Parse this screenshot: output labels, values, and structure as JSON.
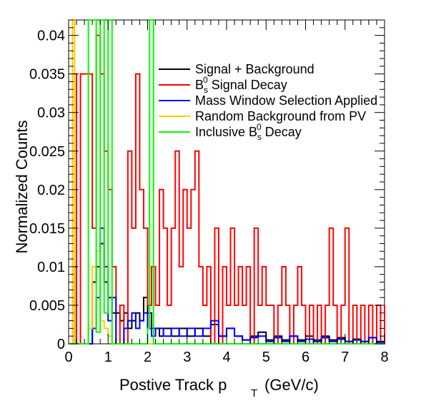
{
  "chart_data": {
    "type": "line",
    "style": "step-histogram",
    "xlabel_main": "Postive Track p",
    "xlabel_sub": "T",
    "xlabel_unit": "(GeV/c)",
    "ylabel": "Normalized Counts",
    "xlim": [
      0,
      8
    ],
    "ylim": [
      0,
      0.042
    ],
    "x_ticks": [
      0,
      1,
      2,
      3,
      4,
      5,
      6,
      7,
      8
    ],
    "x_tick_labels": [
      "0",
      "1",
      "2",
      "3",
      "4",
      "5",
      "6",
      "7",
      "8"
    ],
    "y_ticks": [
      0,
      0.005,
      0.01,
      0.015,
      0.02,
      0.025,
      0.03,
      0.035,
      0.04
    ],
    "y_tick_labels": [
      "0",
      "0.005",
      "0.01",
      "0.015",
      "0.02",
      "0.025",
      "0.03",
      "0.035",
      "0.04"
    ],
    "legend_position": "top-right",
    "series": [
      {
        "name": "Signal + Background",
        "name_parts": [
          "Signal + Background",
          "",
          "",
          ""
        ],
        "color": "#000000",
        "points": [
          [
            0.0,
            0
          ],
          [
            0.1,
            0.0
          ],
          [
            0.15,
            0.01
          ],
          [
            0.2,
            0.0
          ],
          [
            0.6,
            0.008
          ],
          [
            0.7,
            0.01
          ],
          [
            0.8,
            0.013
          ],
          [
            0.9,
            0.008
          ],
          [
            1.0,
            0.006
          ],
          [
            1.1,
            0.004
          ],
          [
            1.3,
            0.003
          ],
          [
            1.4,
            0.004
          ],
          [
            1.5,
            0.002
          ],
          [
            1.6,
            0.003
          ],
          [
            1.7,
            0.004
          ],
          [
            1.8,
            0.003
          ],
          [
            1.9,
            0.006
          ],
          [
            2.0,
            0.004
          ],
          [
            2.1,
            0.002
          ],
          [
            2.3,
            0.001
          ],
          [
            2.4,
            0.002
          ],
          [
            2.6,
            0.001
          ],
          [
            2.8,
            0.002
          ],
          [
            3.0,
            0.001
          ],
          [
            3.2,
            0.002
          ],
          [
            3.4,
            0.001
          ],
          [
            3.6,
            0.0025
          ],
          [
            3.8,
            0.001
          ],
          [
            4.0,
            0.002
          ],
          [
            4.2,
            0.001
          ],
          [
            4.4,
            0.0005
          ],
          [
            4.6,
            0.001
          ],
          [
            4.8,
            0.0015
          ],
          [
            5.0,
            0.0005
          ],
          [
            5.2,
            0.001
          ],
          [
            5.4,
            0.0005
          ],
          [
            5.6,
            0.001
          ],
          [
            5.8,
            0.0005
          ],
          [
            6.0,
            0.001
          ],
          [
            6.2,
            0.0005
          ],
          [
            6.4,
            0.001
          ],
          [
            6.6,
            0.0005
          ],
          [
            6.8,
            0.0008
          ],
          [
            7.0,
            0.0003
          ],
          [
            7.2,
            0.0006
          ],
          [
            7.4,
            0.0003
          ],
          [
            7.6,
            0.0008
          ],
          [
            7.8,
            0.0003
          ],
          [
            8.0,
            0.0003
          ]
        ]
      },
      {
        "name": "B_s^0 Signal Decay",
        "name_parts": [
          "B",
          "s",
          "0",
          " Signal Decay"
        ],
        "color": "#ff0000",
        "points": [
          [
            0.0,
            0.0
          ],
          [
            0.1,
            0.035
          ],
          [
            0.2,
            0.0
          ],
          [
            0.3,
            0.035
          ],
          [
            0.5,
            0.035
          ],
          [
            0.6,
            0.015
          ],
          [
            0.7,
            0.04
          ],
          [
            0.8,
            0.035
          ],
          [
            0.9,
            0.025
          ],
          [
            1.0,
            0.02
          ],
          [
            1.1,
            0.01
          ],
          [
            1.2,
            0.0
          ],
          [
            1.3,
            0.005
          ],
          [
            1.4,
            0.0
          ],
          [
            1.5,
            0.025
          ],
          [
            1.6,
            0.015
          ],
          [
            1.7,
            0.035
          ],
          [
            1.8,
            0.02
          ],
          [
            1.9,
            0.015
          ],
          [
            2.0,
            0.005
          ],
          [
            2.1,
            0.01
          ],
          [
            2.2,
            0.005
          ],
          [
            2.3,
            0.02
          ],
          [
            2.4,
            0.015
          ],
          [
            2.5,
            0.005
          ],
          [
            2.6,
            0.015
          ],
          [
            2.7,
            0.025
          ],
          [
            2.8,
            0.01
          ],
          [
            2.9,
            0.02
          ],
          [
            3.0,
            0.015
          ],
          [
            3.1,
            0.02
          ],
          [
            3.2,
            0.025
          ],
          [
            3.3,
            0.01
          ],
          [
            3.4,
            0.005
          ],
          [
            3.5,
            0.01
          ],
          [
            3.6,
            0.0
          ],
          [
            3.7,
            0.015
          ],
          [
            3.8,
            0.0
          ],
          [
            3.9,
            0.01
          ],
          [
            4.0,
            0.005
          ],
          [
            4.1,
            0.015
          ],
          [
            4.2,
            0.005
          ],
          [
            4.3,
            0.01
          ],
          [
            4.4,
            0.005
          ],
          [
            4.5,
            0.01
          ],
          [
            4.6,
            0.0
          ],
          [
            4.7,
            0.015
          ],
          [
            4.8,
            0.005
          ],
          [
            4.9,
            0.01
          ],
          [
            5.0,
            0.005
          ],
          [
            5.1,
            0.005
          ],
          [
            5.2,
            0.0
          ],
          [
            5.3,
            0.005
          ],
          [
            5.4,
            0.01
          ],
          [
            5.5,
            0.005
          ],
          [
            5.6,
            0.0
          ],
          [
            5.7,
            0.005
          ],
          [
            5.8,
            0.01
          ],
          [
            5.9,
            0.005
          ],
          [
            6.0,
            0.0
          ],
          [
            6.1,
            0.005
          ],
          [
            6.2,
            0.0
          ],
          [
            6.3,
            0.005
          ],
          [
            6.4,
            0.0
          ],
          [
            6.5,
            0.005
          ],
          [
            6.6,
            0.015
          ],
          [
            6.7,
            0.005
          ],
          [
            6.8,
            0.0
          ],
          [
            6.9,
            0.005
          ],
          [
            7.0,
            0.015
          ],
          [
            7.1,
            0.0
          ],
          [
            7.2,
            0.005
          ],
          [
            7.3,
            0.0
          ],
          [
            7.4,
            0.005
          ],
          [
            7.5,
            0.0
          ],
          [
            7.6,
            0.005
          ],
          [
            7.7,
            0.0
          ],
          [
            7.8,
            0.005
          ],
          [
            7.9,
            0.0
          ],
          [
            8.0,
            0.005
          ]
        ]
      },
      {
        "name": "Mass Window Selection Applied",
        "name_parts": [
          "Mass Window Selection Applied",
          "",
          "",
          ""
        ],
        "color": "#0000ff",
        "points": [
          [
            0.0,
            0
          ],
          [
            0.6,
            0.002
          ],
          [
            0.7,
            0.006
          ],
          [
            0.8,
            0.015
          ],
          [
            0.9,
            0.01
          ],
          [
            1.0,
            0.003
          ],
          [
            1.1,
            0.006
          ],
          [
            1.2,
            0.0
          ],
          [
            1.4,
            0.002
          ],
          [
            1.5,
            0.003
          ],
          [
            1.6,
            0.004
          ],
          [
            1.7,
            0.002
          ],
          [
            1.8,
            0.003
          ],
          [
            1.9,
            0.004
          ],
          [
            2.0,
            0.002
          ],
          [
            2.1,
            0.001
          ],
          [
            2.2,
            0.002
          ],
          [
            2.4,
            0.001
          ],
          [
            2.6,
            0.002
          ],
          [
            2.8,
            0.001
          ],
          [
            3.0,
            0.002
          ],
          [
            3.2,
            0.001
          ],
          [
            3.4,
            0.002
          ],
          [
            3.6,
            0.003
          ],
          [
            3.8,
            0.001
          ],
          [
            4.0,
            0.002
          ],
          [
            4.2,
            0.001
          ],
          [
            4.4,
            0.0005
          ],
          [
            4.6,
            0.0008
          ],
          [
            4.8,
            0.001
          ],
          [
            5.0,
            0.0003
          ],
          [
            5.2,
            0.0008
          ],
          [
            5.4,
            0.0003
          ],
          [
            5.6,
            0.001
          ],
          [
            5.8,
            0.0003
          ],
          [
            6.0,
            0.0006
          ],
          [
            6.2,
            0.0003
          ],
          [
            6.4,
            0.0008
          ],
          [
            6.6,
            0.0003
          ],
          [
            6.8,
            0.0006
          ],
          [
            7.0,
            0.0003
          ],
          [
            7.2,
            0.0005
          ],
          [
            7.4,
            0.0003
          ],
          [
            7.6,
            0.0008
          ],
          [
            7.8,
            0.0002
          ],
          [
            8.0,
            0.0002
          ]
        ]
      },
      {
        "name": "Random Background from PV",
        "name_parts": [
          "Random Background from PV",
          "",
          "",
          ""
        ],
        "color": "#ffcc00",
        "points": [
          [
            0.0,
            0
          ],
          [
            0.1,
            0.042
          ],
          [
            0.15,
            0.0
          ],
          [
            0.5,
            0.002
          ],
          [
            0.6,
            0.01
          ],
          [
            0.7,
            0.012
          ],
          [
            0.8,
            0.003
          ],
          [
            0.9,
            0.002
          ],
          [
            1.0,
            0.001
          ],
          [
            1.1,
            0.0
          ],
          [
            8.0,
            0.0
          ]
        ]
      },
      {
        "name": "Inclusive B_s^0 Decay",
        "name_parts": [
          "Inclusive B",
          "s",
          "0",
          " Decay"
        ],
        "color": "#00ff00",
        "points": [
          [
            0.0,
            0
          ],
          [
            0.5,
            0.042
          ],
          [
            0.6,
            0.042
          ],
          [
            0.7,
            0.0015
          ],
          [
            0.8,
            0.042
          ],
          [
            0.9,
            0.004
          ],
          [
            1.0,
            0.042
          ],
          [
            1.1,
            0.0
          ],
          [
            2.0,
            0.002
          ],
          [
            2.05,
            0.042
          ],
          [
            2.15,
            0.0
          ],
          [
            8.0,
            0.0
          ]
        ]
      }
    ]
  }
}
